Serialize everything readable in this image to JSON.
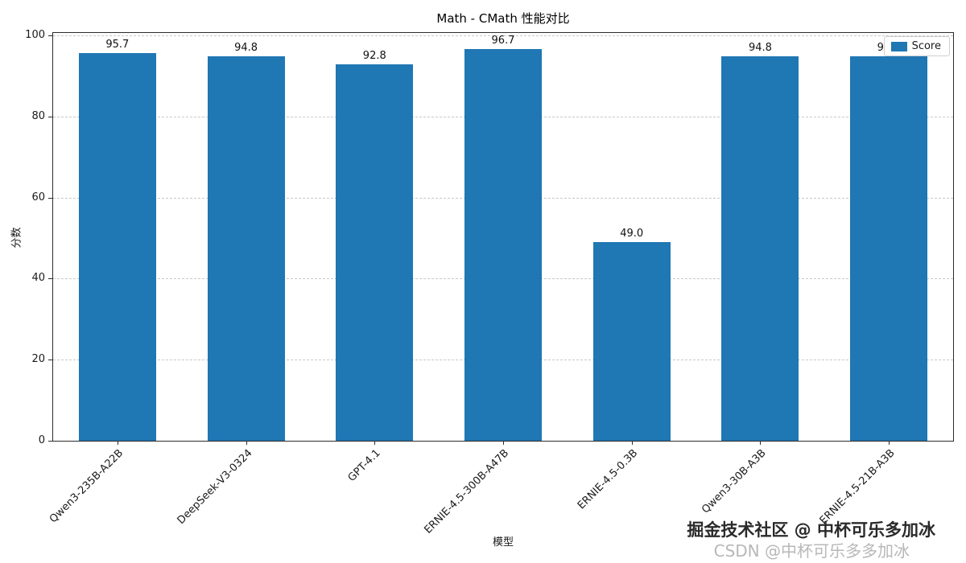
{
  "chart_data": {
    "type": "bar",
    "title": "Math - CMath 性能对比",
    "xlabel": "模型",
    "ylabel": "分数",
    "ylim": [
      0,
      100
    ],
    "yticks": [
      0,
      20,
      40,
      60,
      80,
      100
    ],
    "categories": [
      "Qwen3-235B-A22B",
      "DeepSeek-V3-0324",
      "GPT-4.1",
      "ERNIE-4.5-300B-A47B",
      "ERNIE-4.5-0.3B",
      "Qwen3-30B-A3B",
      "ERNIE-4.5-21B-A3B"
    ],
    "values": [
      95.7,
      94.8,
      92.8,
      96.7,
      49.0,
      94.8,
      94.8
    ],
    "value_labels": [
      "95.7",
      "94.8",
      "92.8",
      "96.7",
      "49.0",
      "94.8",
      "94.8"
    ],
    "legend": {
      "label": "Score",
      "position": "upper right"
    },
    "bar_color": "#1f77b4",
    "grid": "dashed-horizontal"
  },
  "watermarks": {
    "line1": "掘金技术社区 @ 中杯可乐多加冰",
    "line2": "CSDN @中杯可乐多多加冰"
  }
}
